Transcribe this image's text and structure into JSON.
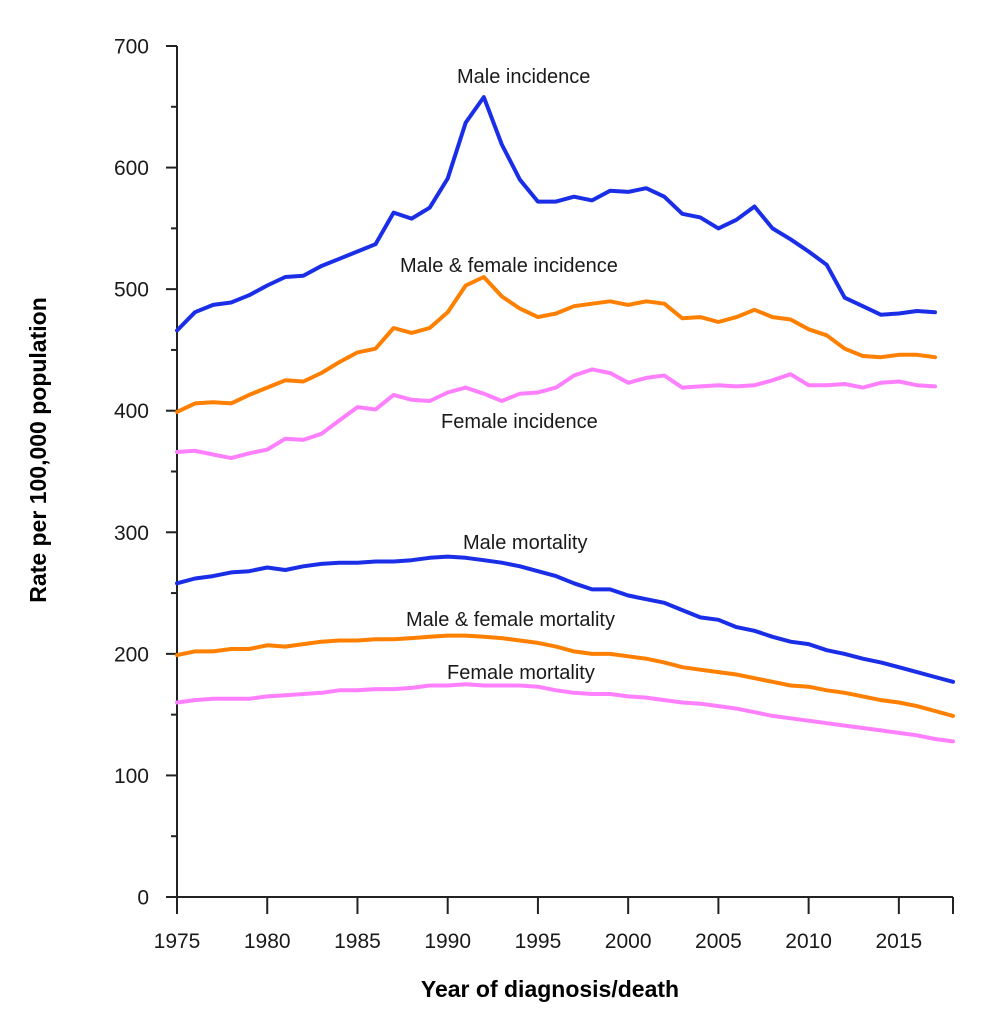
{
  "chart_data": {
    "type": "line",
    "title": "",
    "xlabel": "Year of diagnosis/death",
    "ylabel": "Rate per 100,000 population",
    "xlim": [
      1975,
      2018
    ],
    "ylim": [
      0,
      700
    ],
    "grid": false,
    "legend": "inline-labels",
    "x_ticks": [
      1975,
      1980,
      1985,
      1990,
      1995,
      2000,
      2005,
      2010,
      2015
    ],
    "x_tick_labels": [
      "1975",
      "1980",
      "1985",
      "1990",
      "1995",
      "2000",
      "2005",
      "2010",
      "2015"
    ],
    "y_ticks": [
      0,
      100,
      200,
      300,
      400,
      500,
      600,
      700
    ],
    "y_tick_labels": [
      "0",
      "100",
      "200",
      "300",
      "400",
      "500",
      "600",
      "700"
    ],
    "y_minor_ticks": [
      50,
      150,
      250,
      350,
      450,
      550,
      650
    ],
    "series": [
      {
        "name": "Male incidence",
        "color": "#1a2ee8",
        "x_start": 1975,
        "values": [
          466,
          481,
          487,
          489,
          495,
          503,
          510,
          511,
          519,
          525,
          531,
          537,
          563,
          558,
          567,
          591,
          637,
          658,
          619,
          590,
          572,
          572,
          576,
          573,
          581,
          580,
          583,
          576,
          562,
          559,
          550,
          557,
          568,
          550,
          541,
          531,
          520,
          493,
          486,
          479,
          480,
          482,
          481
        ]
      },
      {
        "name": "Male & female incidence",
        "color": "#ff8000",
        "x_start": 1975,
        "values": [
          399,
          406,
          407,
          406,
          413,
          419,
          425,
          424,
          431,
          440,
          448,
          451,
          468,
          464,
          468,
          481,
          503,
          510,
          494,
          484,
          477,
          480,
          486,
          488,
          490,
          487,
          490,
          488,
          476,
          477,
          473,
          477,
          483,
          477,
          475,
          467,
          462,
          451,
          445,
          444,
          446,
          446,
          444
        ]
      },
      {
        "name": "Female incidence",
        "color": "#ff80ff",
        "x_start": 1975,
        "values": [
          366,
          367,
          364,
          361,
          365,
          368,
          377,
          376,
          381,
          392,
          403,
          401,
          413,
          409,
          408,
          415,
          419,
          414,
          408,
          414,
          415,
          419,
          429,
          434,
          431,
          423,
          427,
          429,
          419,
          420,
          421,
          420,
          421,
          425,
          430,
          421,
          421,
          422,
          419,
          423,
          424,
          421,
          420
        ]
      },
      {
        "name": "Male mortality",
        "color": "#1a2ee8",
        "x_start": 1975,
        "values": [
          258,
          262,
          264,
          267,
          268,
          271,
          269,
          272,
          274,
          275,
          275,
          276,
          276,
          277,
          279,
          280,
          279,
          277,
          275,
          272,
          268,
          264,
          258,
          253,
          253,
          248,
          245,
          242,
          236,
          230,
          228,
          222,
          219,
          214,
          210,
          208,
          203,
          200,
          196,
          193,
          189,
          185,
          181,
          177
        ]
      },
      {
        "name": "Male & female mortality",
        "color": "#ff8000",
        "x_start": 1975,
        "values": [
          199,
          202,
          202,
          204,
          204,
          207,
          206,
          208,
          210,
          211,
          211,
          212,
          212,
          213,
          214,
          215,
          215,
          214,
          213,
          211,
          209,
          206,
          202,
          200,
          200,
          198,
          196,
          193,
          189,
          187,
          185,
          183,
          180,
          177,
          174,
          173,
          170,
          168,
          165,
          162,
          160,
          157,
          153,
          149
        ]
      },
      {
        "name": "Female mortality",
        "color": "#ff80ff",
        "x_start": 1975,
        "values": [
          160,
          162,
          163,
          163,
          163,
          165,
          166,
          167,
          168,
          170,
          170,
          171,
          171,
          172,
          174,
          174,
          175,
          174,
          174,
          174,
          173,
          170,
          168,
          167,
          167,
          165,
          164,
          162,
          160,
          159,
          157,
          155,
          152,
          149,
          147,
          145,
          143,
          141,
          139,
          137,
          135,
          133,
          130,
          128
        ]
      }
    ],
    "annotations": [
      {
        "text": "Male incidence",
        "series": "Male incidence"
      },
      {
        "text": "Male & female incidence",
        "series": "Male & female incidence"
      },
      {
        "text": "Female incidence",
        "series": "Female incidence"
      },
      {
        "text": "Male mortality",
        "series": "Male mortality"
      },
      {
        "text": "Male & female mortality",
        "series": "Male & female mortality"
      },
      {
        "text": "Female mortality",
        "series": "Female mortality"
      }
    ]
  }
}
